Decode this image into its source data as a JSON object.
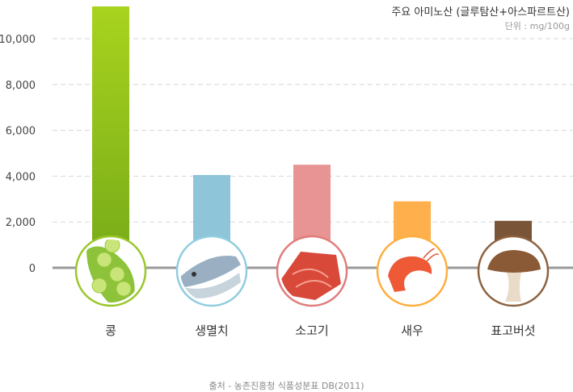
{
  "chart_data": {
    "type": "bar",
    "title": "주요 아미노산 (글루탐산+아스파르트산)",
    "unit": "단위 : mg/100g",
    "categories": [
      "콩",
      "생멸치",
      "소고기",
      "새우",
      "표고버섯"
    ],
    "values": [
      11500,
      4050,
      4500,
      2900,
      2050
    ],
    "ylim": [
      0,
      11500
    ],
    "yticks": [
      0,
      2000,
      4000,
      6000,
      8000,
      10000
    ],
    "ytick_labels": [
      "0",
      "2,000",
      "4,000",
      "6,000",
      "8,000",
      "10,000"
    ],
    "grid": true,
    "colors": {
      "bars": [
        "#93c21a",
        "#8fc5d8",
        "#e89494",
        "#ffb04c",
        "#7a5436"
      ],
      "rings": [
        "#9ac72c",
        "#8fcde0",
        "#e07c7c",
        "#ffae3e",
        "#8c6240"
      ],
      "axis": "#999999",
      "grid": "#d8d8d8"
    },
    "icons": [
      "pea-pod-icon",
      "anchovy-fish-icon",
      "beef-icon",
      "shrimp-icon",
      "shiitake-mushroom-icon"
    ]
  },
  "source": "출처 - 농촌진흥청 식품성분표 DB(2011)"
}
